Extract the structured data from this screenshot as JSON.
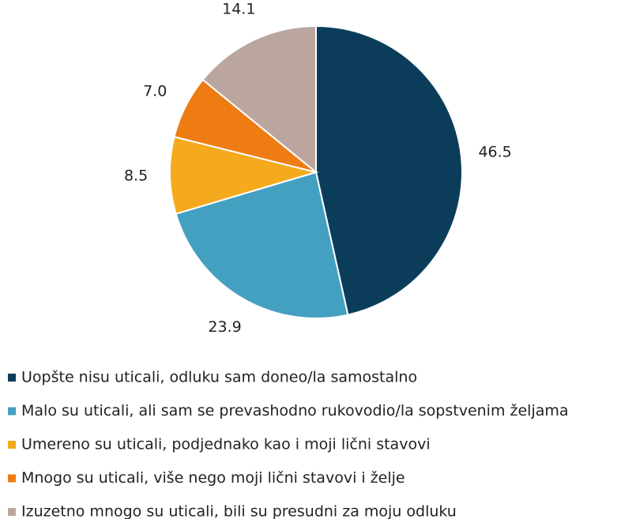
{
  "chart_data": {
    "type": "pie",
    "categories": [
      "Uopšte nisu uticali, odluku sam doneo/la samostalno",
      "Malo su uticali, ali sam se prevashodno rukovodio/la sopstvenim željama",
      "Umereno su uticali, podjednako kao i moji lični stavovi",
      "Mnogo su uticali, više nego moji lični stavovi i želje",
      "Izuzetno mnogo su uticali, bili su presudni za moju odluku"
    ],
    "values": [
      46.5,
      23.9,
      8.5,
      7.0,
      14.1
    ],
    "value_labels": [
      "46.5",
      "23.9",
      "8.5",
      "7.0",
      "14.1"
    ],
    "colors": [
      "#0b3d5b",
      "#44a0c1",
      "#f5aa1e",
      "#ee7c12",
      "#bba69f"
    ],
    "legend": "bottom"
  }
}
